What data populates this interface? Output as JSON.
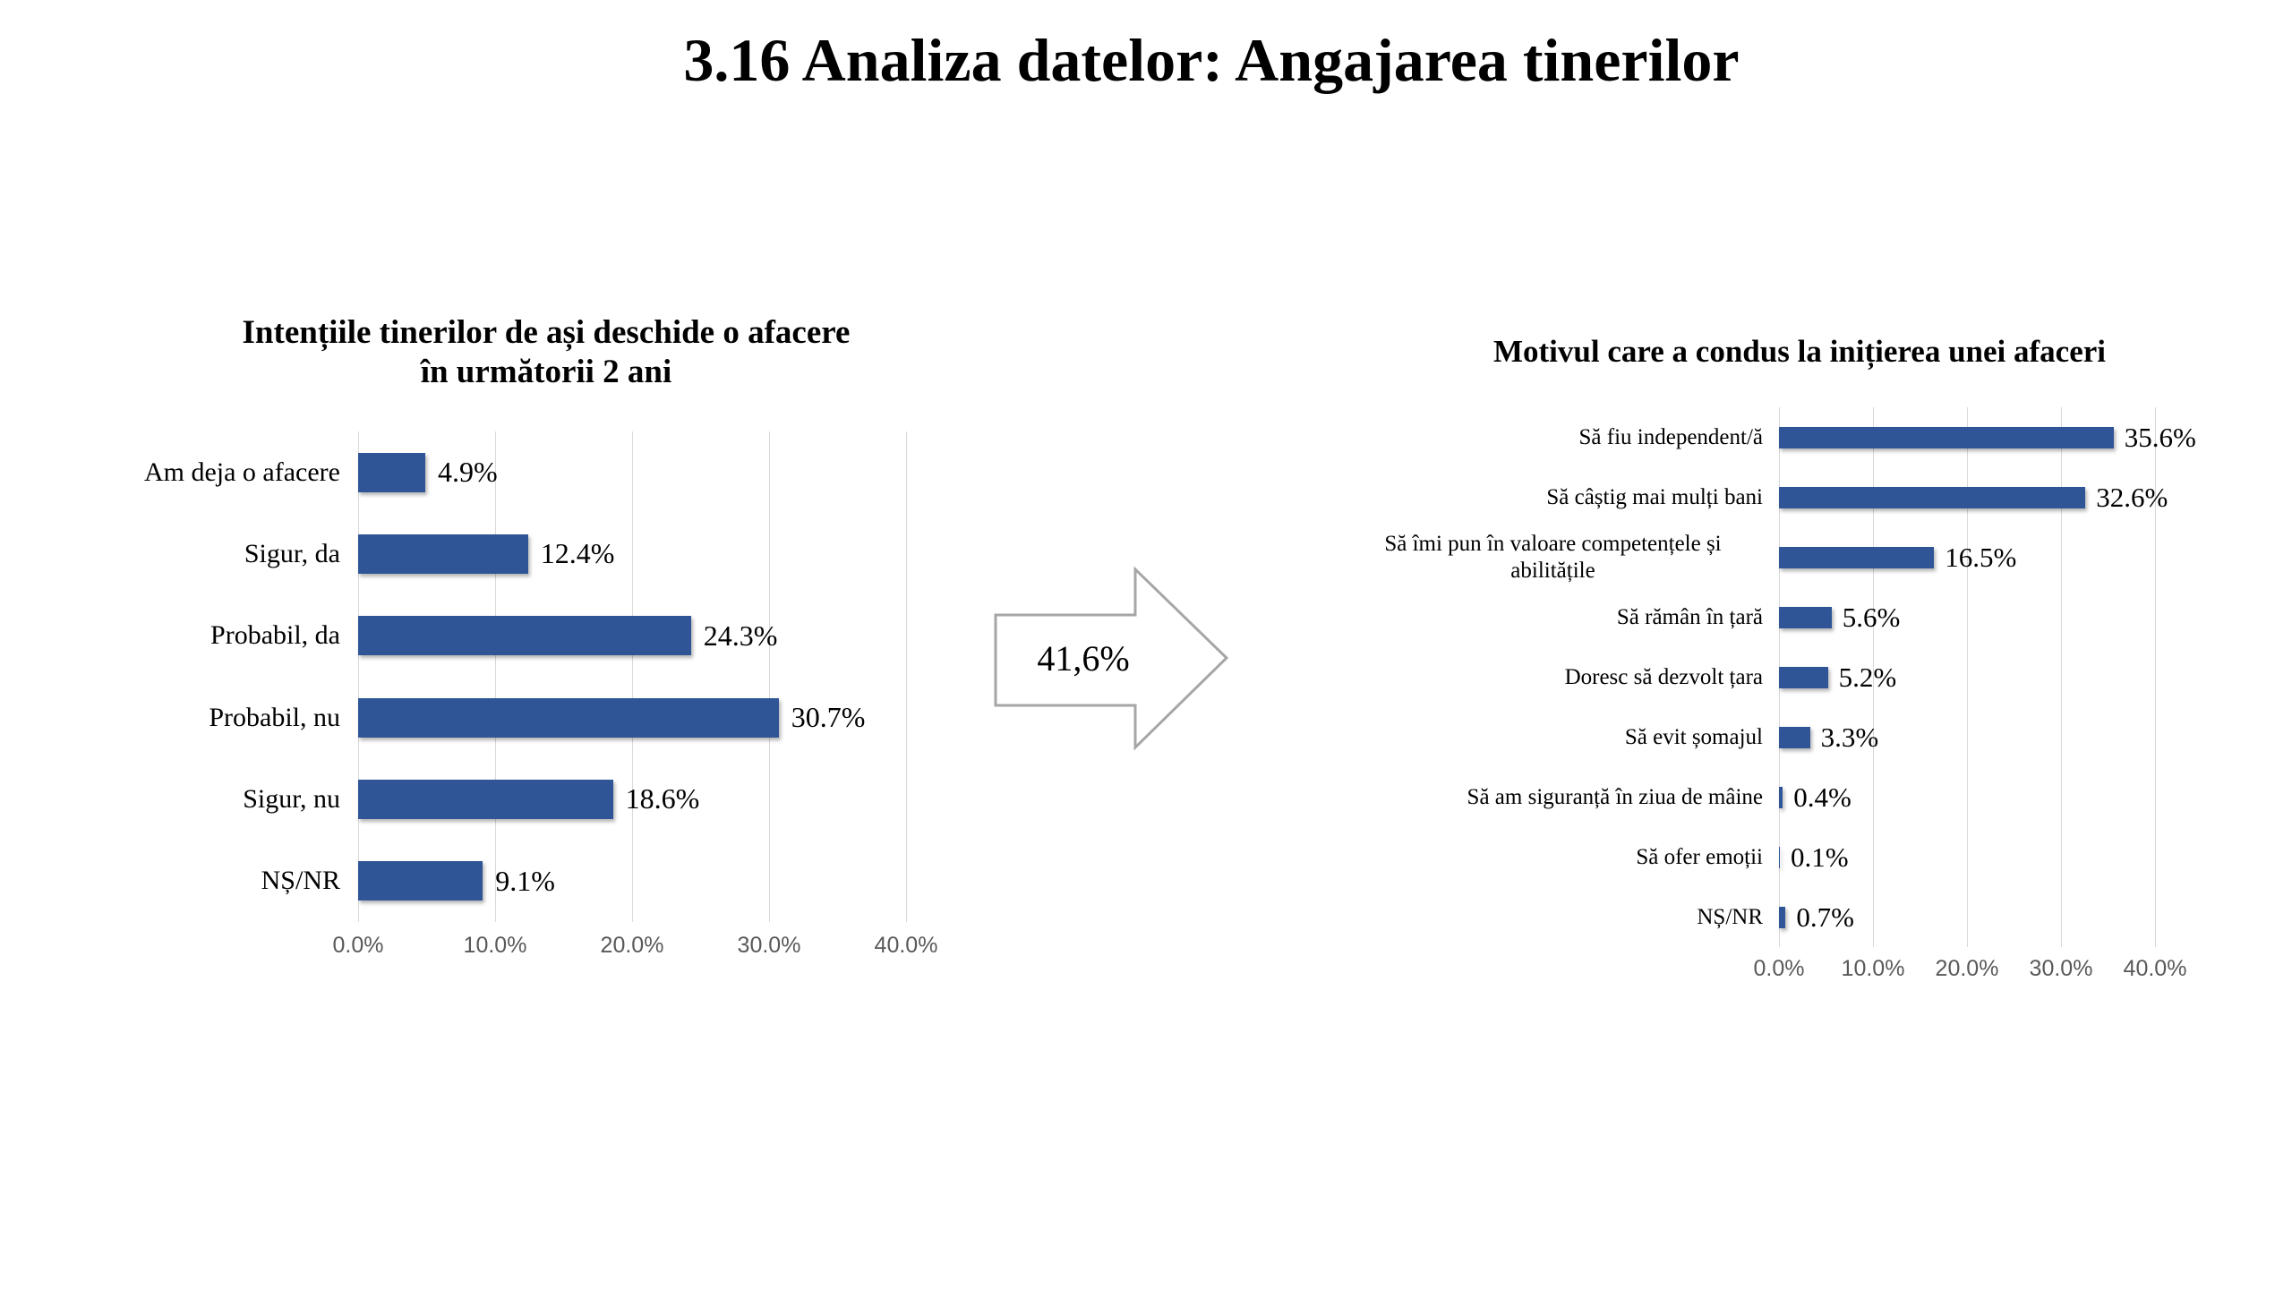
{
  "title": "3.16 Analiza datelor: Angajarea tinerilor",
  "arrow": {
    "label": "41,6%"
  },
  "colors": {
    "bar": "#2F5597",
    "gridline": "#D9D9D9",
    "axis_text": "#595959",
    "arrow_outline": "#A6A6A6",
    "arrow_fill": "#FFFFFF"
  },
  "chart_data": [
    {
      "type": "bar",
      "orientation": "horizontal",
      "title": "Intențiile tinerilor de ași deschide o afacere în următorii 2 ani",
      "categories": [
        "Am deja o afacere",
        "Sigur, da",
        "Probabil, da",
        "Probabil, nu",
        "Sigur, nu",
        "NȘ/NR"
      ],
      "values": [
        4.9,
        12.4,
        24.3,
        30.7,
        18.6,
        9.1
      ],
      "value_labels": [
        "4.9%",
        "12.4%",
        "24.3%",
        "30.7%",
        "18.6%",
        "9.1%"
      ],
      "xlabel": "",
      "ylabel": "",
      "xlim": [
        0,
        40
      ],
      "xticks": [
        "0.0%",
        "10.0%",
        "20.0%",
        "30.0%",
        "40.0%"
      ],
      "grid": "vertical",
      "legend": "none",
      "bar_color": "#2F5597"
    },
    {
      "type": "bar",
      "orientation": "horizontal",
      "title": "Motivul care a condus la inițierea unei afaceri",
      "categories": [
        "Să fiu independent/ă",
        "Să câștig mai mulți bani",
        "Să îmi pun în valoare competențele și abilitățile",
        "Să rămân în țară",
        "Doresc să dezvolt țara",
        "Să evit șomajul",
        "Să am siguranță în ziua de mâine",
        "Să ofer emoții",
        "NȘ/NR"
      ],
      "values": [
        35.6,
        32.6,
        16.5,
        5.6,
        5.2,
        3.3,
        0.4,
        0.1,
        0.7
      ],
      "value_labels": [
        "35.6%",
        "32.6%",
        "16.5%",
        "5.6%",
        "5.2%",
        "3.3%",
        "0.4%",
        "0.1%",
        "0.7%"
      ],
      "xlabel": "",
      "ylabel": "",
      "xlim": [
        0,
        40
      ],
      "xticks": [
        "0.0%",
        "10.0%",
        "20.0%",
        "30.0%",
        "40.0%"
      ],
      "grid": "vertical",
      "legend": "none",
      "bar_color": "#2F5597"
    }
  ]
}
